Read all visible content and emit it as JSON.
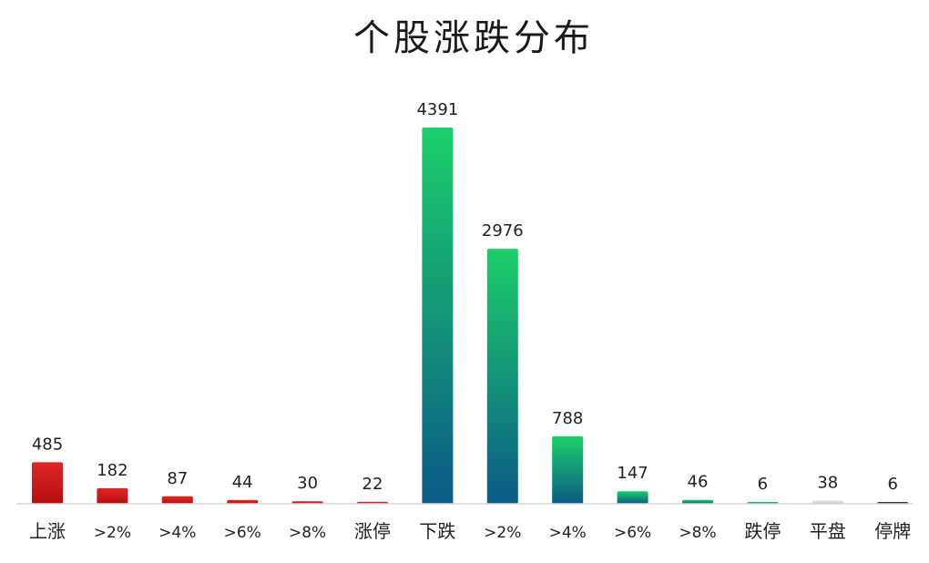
{
  "chart_data": {
    "type": "bar",
    "title": "个股涨跌分布",
    "xlabel": "",
    "ylabel": "",
    "ylim": [
      0,
      4391
    ],
    "grid": false,
    "legend": "none",
    "categories": [
      "上涨",
      ">2%",
      ">4%",
      ">6%",
      ">8%",
      "涨停",
      "下跌",
      ">2%",
      ">4%",
      ">6%",
      ">8%",
      "跌停",
      "平盘",
      "停牌"
    ],
    "values": [
      485,
      182,
      87,
      44,
      30,
      22,
      4391,
      2976,
      788,
      147,
      46,
      6,
      38,
      6
    ],
    "bar_styles": [
      "red",
      "red",
      "red",
      "red",
      "red",
      "red",
      "green",
      "green",
      "green",
      "green",
      "green",
      "green",
      "gray",
      "dark"
    ]
  },
  "colors": {
    "red_top": "#e02626",
    "red_bottom": "#b40f0f",
    "green_top": "#1ccf6a",
    "green_bottom": "#0b5a86",
    "gray_top": "#e4e4e4",
    "gray_bottom": "#c8c8c8",
    "dark_top": "#3a3a3a",
    "dark_bottom": "#1f1f1f"
  }
}
